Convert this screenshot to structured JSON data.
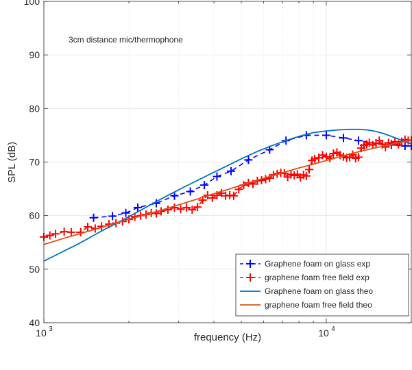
{
  "chart_data": {
    "type": "line",
    "xscale": "log",
    "xlim": [
      1000,
      20000
    ],
    "ylim": [
      40,
      100
    ],
    "xlabel": "frequency (Hz)",
    "ylabel": "SPL (dB)",
    "grid": true,
    "annotation": "3cm distance mic/thermophone",
    "y_ticks": [
      "40",
      "50",
      "60",
      "70",
      "80",
      "90",
      "100"
    ],
    "x_tick_base": "10",
    "x_tick_exponents": [
      "3",
      "4"
    ],
    "legend_position": "bottom-right",
    "series": [
      {
        "name": "Graphene foam on glass exp",
        "style": "dashed-plus",
        "color": "#0000ff",
        "x": [
          1500,
          1750,
          1950,
          2150,
          2500,
          2900,
          3300,
          3700,
          4100,
          4600,
          5300,
          6300,
          7200,
          8500,
          10000,
          11500,
          13000,
          15000,
          17000,
          19000,
          20000
        ],
        "y": [
          59.6,
          59.9,
          60.5,
          61.5,
          62.3,
          63.7,
          64.5,
          65.7,
          67.3,
          68.3,
          70.4,
          72.3,
          74.0,
          75.0,
          75.0,
          74.5,
          74.0,
          73.5,
          73.2,
          73.0,
          73.0
        ]
      },
      {
        "name": "graphene foam free field exp",
        "style": "dashed-plus",
        "color": "#ff0000",
        "x": [
          1000,
          1050,
          1100,
          1180,
          1250,
          1350,
          1430,
          1520,
          1600,
          1700,
          1800,
          1900,
          2000,
          2100,
          2200,
          2300,
          2400,
          2500,
          2600,
          2750,
          2900,
          3050,
          3200,
          3350,
          3500,
          3650,
          3800,
          3950,
          4100,
          4250,
          4400,
          4550,
          4700,
          4900,
          5100,
          5300,
          5500,
          5700,
          5900,
          6100,
          6300,
          6500,
          6700,
          6900,
          7100,
          7300,
          7500,
          7700,
          7900,
          8100,
          8300,
          8500,
          8700,
          8900,
          9100,
          9400,
          9700,
          10000,
          10300,
          10600,
          10900,
          11200,
          11500,
          11800,
          12100,
          12400,
          12700,
          13000,
          13300,
          13600,
          13900,
          14200,
          14600,
          15000,
          15400,
          15800,
          16200,
          16600,
          17000,
          17500,
          18000,
          18500,
          19000,
          19500,
          20000
        ],
        "y": [
          56.0,
          56.3,
          56.6,
          57.0,
          56.9,
          56.9,
          57.9,
          57.6,
          58.0,
          58.4,
          58.6,
          58.9,
          59.3,
          59.8,
          60.0,
          60.2,
          60.5,
          60.4,
          60.8,
          61.1,
          61.5,
          61.2,
          61.5,
          61.1,
          61.6,
          62.9,
          63.8,
          63.3,
          63.8,
          64.2,
          63.7,
          63.8,
          63.7,
          64.9,
          65.7,
          66.1,
          65.9,
          66.5,
          66.6,
          66.8,
          67.0,
          67.6,
          67.8,
          68.0,
          67.9,
          67.2,
          67.7,
          67.5,
          67.7,
          67.1,
          67.6,
          67.4,
          68.6,
          70.3,
          70.6,
          70.8,
          71.3,
          71.0,
          70.7,
          71.6,
          71.8,
          71.3,
          71.0,
          70.8,
          70.9,
          71.4,
          70.7,
          70.9,
          72.6,
          73.1,
          73.3,
          73.6,
          73.2,
          73.5,
          74.0,
          73.3,
          72.8,
          73.6,
          73.4,
          73.8,
          73.3,
          73.8,
          74.2,
          74.0,
          74.1
        ]
      },
      {
        "name": "Graphene foam on glass theo",
        "style": "solid",
        "color": "#0072bd",
        "x": [
          1000,
          1100,
          1200,
          1300,
          1400,
          1500,
          1650,
          1800,
          2000,
          2200,
          2400,
          2600,
          2800,
          3000,
          3300,
          3600,
          4000,
          4500,
          5000,
          5600,
          6300,
          7100,
          8000,
          9000,
          10000,
          11000,
          12000,
          13000,
          14000,
          15000,
          16000,
          17000,
          18000,
          19000,
          20000
        ],
        "y": [
          51.5,
          52.6,
          53.6,
          54.5,
          55.4,
          56.3,
          57.5,
          58.5,
          59.8,
          61.0,
          62.1,
          63.1,
          64.0,
          64.8,
          65.9,
          66.9,
          68.1,
          69.4,
          70.6,
          71.8,
          72.9,
          73.9,
          74.8,
          75.5,
          75.8,
          76.0,
          76.1,
          76.1,
          76.0,
          75.7,
          75.3,
          74.8,
          74.3,
          73.8,
          73.4
        ]
      },
      {
        "name": "graphene foam free field theo",
        "style": "solid",
        "color": "#d95319",
        "x": [
          1000,
          1200,
          1400,
          1600,
          1800,
          2000,
          2300,
          2600,
          3000,
          3500,
          4000,
          4500,
          5000,
          5600,
          6300,
          7100,
          8000,
          9000,
          10000,
          11200,
          12500,
          14000,
          16000,
          18000,
          20000
        ],
        "y": [
          54.6,
          55.9,
          56.9,
          57.8,
          58.6,
          59.3,
          60.2,
          61.0,
          62.0,
          63.1,
          64.1,
          64.9,
          65.7,
          66.5,
          67.3,
          68.1,
          68.9,
          69.6,
          70.3,
          71.0,
          71.7,
          72.3,
          73.0,
          73.6,
          74.1
        ]
      }
    ]
  }
}
